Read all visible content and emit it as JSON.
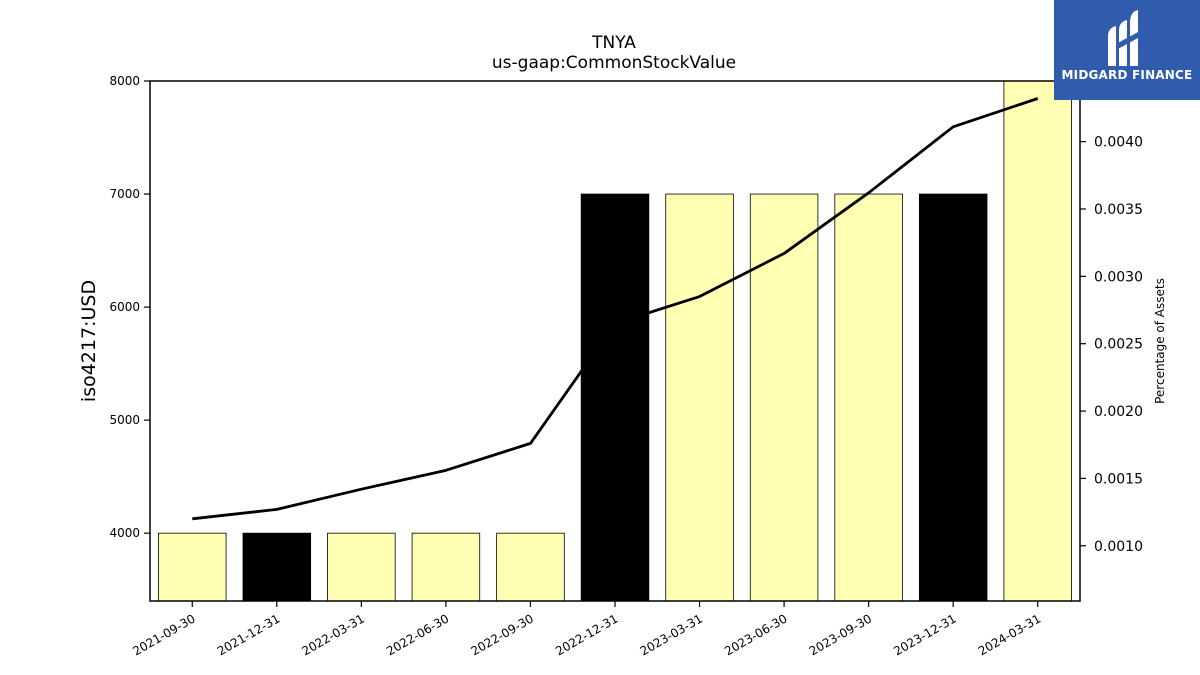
{
  "chart_data": {
    "type": "bar",
    "title": "TNYA",
    "subtitle": "us-gaap:CommonStockValue",
    "ylabel": "iso4217:USD",
    "y2label": "Percentage of Assets",
    "categories": [
      "2021-09-30",
      "2021-12-31",
      "2022-03-31",
      "2022-06-30",
      "2022-09-30",
      "2022-12-31",
      "2023-03-31",
      "2023-06-30",
      "2023-09-30",
      "2023-12-31",
      "2024-03-31"
    ],
    "values": [
      4000,
      4000,
      4000,
      4000,
      4000,
      7000,
      7000,
      7000,
      7000,
      7000,
      8000
    ],
    "bar_colors": [
      "#ffffb3",
      "#000000",
      "#ffffb3",
      "#ffffb3",
      "#ffffb3",
      "#000000",
      "#ffffb3",
      "#ffffb3",
      "#ffffb3",
      "#000000",
      "#ffffb3"
    ],
    "ylim": [
      3400,
      8000
    ],
    "yticks": [
      4000,
      5000,
      6000,
      7000,
      8000
    ],
    "line": {
      "name": "Percentage of Assets",
      "values": [
        0.0012,
        0.00127,
        0.00142,
        0.00156,
        0.00176,
        0.00265,
        0.00285,
        0.00317,
        0.00362,
        0.00411,
        0.00432
      ]
    },
    "y2lim": [
      0.00059,
      0.00445
    ],
    "y2ticks": [
      "0.0010",
      "0.0015",
      "0.0020",
      "0.0025",
      "0.0030",
      "0.0035",
      "0.0040"
    ],
    "grid": false
  },
  "logo": {
    "text": "MIDGARD FINANCE",
    "icon": "midgard-logo-icon"
  }
}
